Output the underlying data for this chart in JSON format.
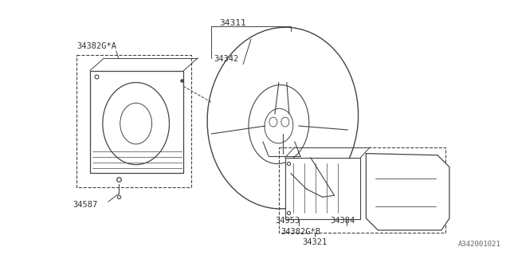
{
  "bg_color": "#ffffff",
  "line_color": "#444444",
  "label_color": "#333333",
  "fig_width": 6.4,
  "fig_height": 3.2,
  "dpi": 100,
  "watermark_text": "A342001021",
  "label_34311": "34311",
  "label_34342": "34342",
  "label_34382A": "34382G*A",
  "label_34587": "34587",
  "label_34953": "34953",
  "label_34384": "34384",
  "label_34382B": "34382G*B",
  "label_34321": "34321"
}
